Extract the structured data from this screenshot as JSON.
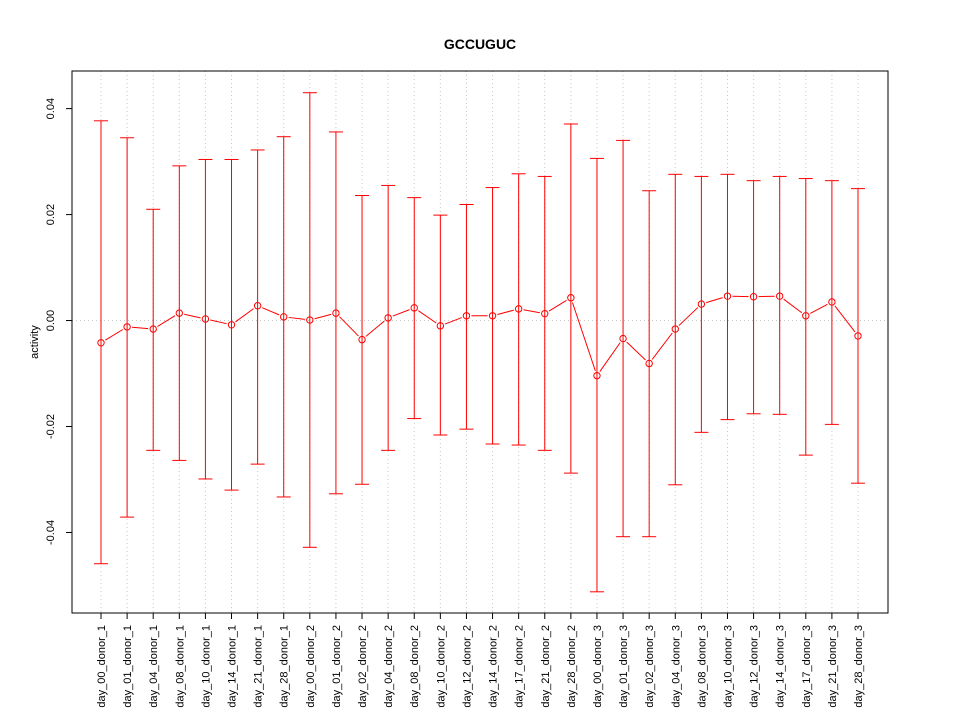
{
  "chart_data": {
    "type": "line",
    "title": "GCCUGUC",
    "xlabel": "",
    "ylabel": "activity",
    "ylim": [
      -0.0552,
      0.0471
    ],
    "yticks": [
      -0.04,
      -0.02,
      0.0,
      0.02,
      0.04
    ],
    "ytick_labels": [
      "-0.04",
      "-0.02",
      "0.00",
      "0.02",
      "0.04"
    ],
    "grid": true,
    "color": "#ff0000",
    "categories": [
      "day_00_donor_1",
      "day_01_donor_1",
      "day_04_donor_1",
      "day_08_donor_1",
      "day_10_donor_1",
      "day_14_donor_1",
      "day_21_donor_1",
      "day_28_donor_1",
      "day_00_donor_2",
      "day_01_donor_2",
      "day_02_donor_2",
      "day_04_donor_2",
      "day_08_donor_2",
      "day_10_donor_2",
      "day_12_donor_2",
      "day_14_donor_2",
      "day_17_donor_2",
      "day_21_donor_2",
      "day_28_donor_2",
      "day_00_donor_3",
      "day_01_donor_3",
      "day_02_donor_3",
      "day_04_donor_3",
      "day_08_donor_3",
      "day_10_donor_3",
      "day_12_donor_3",
      "day_14_donor_3",
      "day_17_donor_3",
      "day_21_donor_3",
      "day_28_donor_3"
    ],
    "values": [
      -0.0042,
      -0.0012,
      -0.0016,
      0.0014,
      0.0003,
      -0.0008,
      0.0028,
      0.0007,
      0.0001,
      0.0014,
      -0.0036,
      0.0005,
      0.0024,
      -0.001,
      0.0009,
      0.0009,
      0.0022,
      0.0013,
      0.0043,
      -0.0104,
      -0.0034,
      -0.0081,
      -0.0016,
      0.0031,
      0.0046,
      0.0045,
      0.0046,
      0.0009,
      0.0035,
      -0.0029
    ],
    "upper": [
      0.0377,
      0.0345,
      0.021,
      0.0292,
      0.0304,
      0.0304,
      0.0322,
      0.0347,
      0.043,
      0.0356,
      0.0236,
      0.0255,
      0.0232,
      0.0199,
      0.0219,
      0.0251,
      0.0277,
      0.0272,
      0.0371,
      0.0306,
      0.034,
      0.0245,
      0.0276,
      0.0272,
      0.0276,
      0.0264,
      0.0272,
      0.0268,
      0.0264,
      0.0249
    ],
    "lower": [
      -0.0459,
      -0.0371,
      -0.0245,
      -0.0264,
      -0.0299,
      -0.032,
      -0.0271,
      -0.0333,
      -0.0428,
      -0.0327,
      -0.0309,
      -0.0245,
      -0.0185,
      -0.0216,
      -0.0205,
      -0.0233,
      -0.0235,
      -0.0245,
      -0.0288,
      -0.0512,
      -0.0408,
      -0.0408,
      -0.031,
      -0.0211,
      -0.0187,
      -0.0176,
      -0.0177,
      -0.0254,
      -0.0196,
      -0.0307
    ]
  }
}
